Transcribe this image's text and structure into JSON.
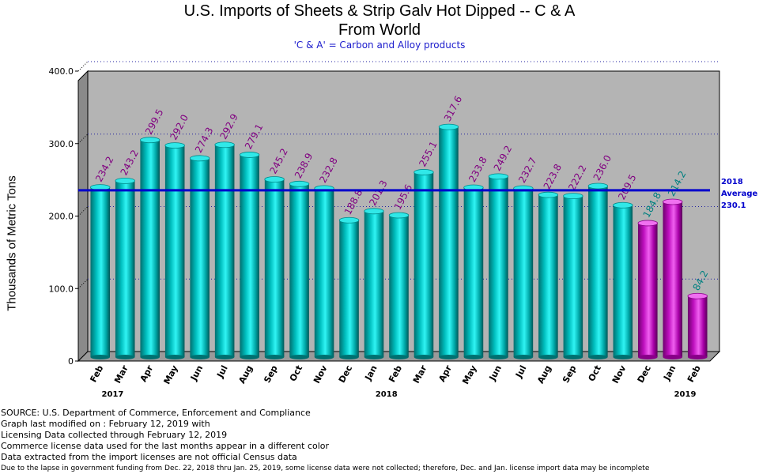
{
  "chart_data": {
    "type": "bar",
    "title_line1": "U.S. Imports of Sheets & Strip Galv Hot Dipped -- C & A",
    "title_line2": "From World",
    "subtitle": "'C & A' = Carbon and Alloy products",
    "ylabel": "Thousands of Metric Tons",
    "ylim": [
      0,
      400
    ],
    "yticks": [
      "0",
      "100.0",
      "200.0",
      "300.0",
      "400.0"
    ],
    "categories": [
      "Feb",
      "Mar",
      "Apr",
      "May",
      "Jun",
      "Jul",
      "Aug",
      "Sep",
      "Oct",
      "Nov",
      "Dec",
      "Jan",
      "Feb",
      "Mar",
      "Apr",
      "May",
      "Jun",
      "Jul",
      "Aug",
      "Sep",
      "Oct",
      "Nov",
      "Dec",
      "Jan",
      "Feb"
    ],
    "values": [
      234.2,
      243.2,
      299.5,
      292.0,
      274.3,
      292.9,
      279.1,
      245.2,
      238.9,
      232.8,
      188.8,
      201.3,
      195.6,
      255.1,
      317.6,
      233.8,
      249.2,
      232.7,
      223.8,
      222.2,
      236.0,
      209.5,
      184.8,
      214.2,
      84.2
    ],
    "value_labels": [
      "234.2",
      "243.2",
      "299.5",
      "292.0",
      "274.3",
      "292.9",
      "279.1",
      "245.2",
      "238.9",
      "232.8",
      "188.8",
      "201.3",
      "195.6",
      "255.1",
      "317.6",
      "233.8",
      "249.2",
      "232.7",
      "223.8",
      "222.2",
      "236.0",
      "209.5",
      "184.8",
      "214.2",
      "84.2"
    ],
    "license_data": [
      false,
      false,
      false,
      false,
      false,
      false,
      false,
      false,
      false,
      false,
      false,
      false,
      false,
      false,
      false,
      false,
      false,
      false,
      false,
      false,
      false,
      false,
      true,
      true,
      true
    ],
    "year_labels": [
      {
        "text": "2017",
        "index": 0.5
      },
      {
        "text": "2018",
        "index": 11.5
      },
      {
        "text": "2019",
        "index": 23.5
      }
    ],
    "average": {
      "value": 230.1,
      "line1": "2018",
      "line2": "Average",
      "line3": "230.1"
    },
    "grid": "horizontal dotted",
    "colors": {
      "census_bar": "#00c8c8",
      "license_bar": "#d020d0",
      "census_label": "#800080",
      "license_label": "#008080",
      "average_line": "#0000cc",
      "plot_bg": "#b4b4b4",
      "grid": "#2020a0"
    }
  },
  "notes": [
    "SOURCE: U.S. Department of Commerce, Enforcement and Compliance",
    "Graph last modified on : February 12, 2019  with",
    "Licensing Data collected through February 12, 2019",
    "Commerce license data used for the last months appear in a different color",
    "Data extracted from the import licenses are not official Census data",
    "Due to the lapse in government funding from Dec. 22, 2018 thru Jan. 25, 2019, some license data were not collected; therefore, Dec. and Jan. license import data may be incomplete"
  ]
}
